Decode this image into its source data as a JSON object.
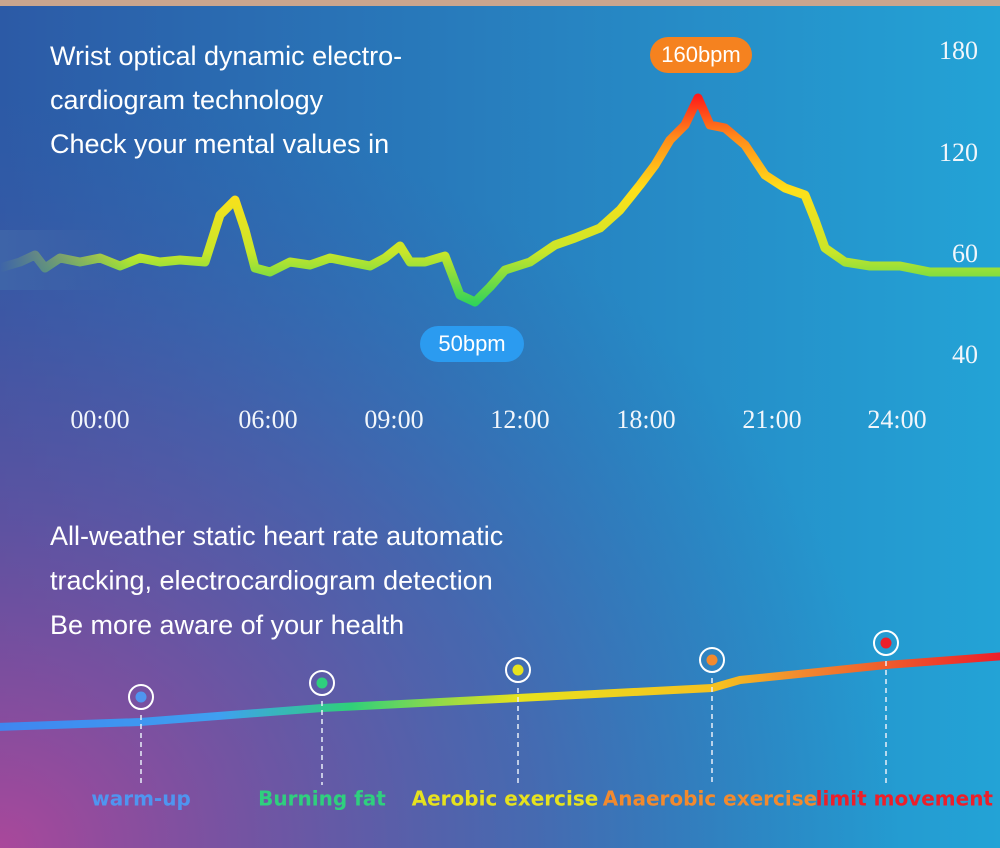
{
  "intro": {
    "lines": [
      "Wrist optical dynamic electro-",
      "cardiogram technology",
      "Check your mental values in"
    ]
  },
  "peak_label": "160bpm",
  "low_label": "50bpm",
  "y_labels": [
    "180",
    "120",
    "60",
    "40"
  ],
  "x_labels": [
    "00:00",
    "06:00",
    "09:00",
    "12:00",
    "18:00",
    "21:00",
    "24:00"
  ],
  "tracking": {
    "lines": [
      "All-weather static heart rate automatic",
      "tracking, electrocardiogram detection",
      "Be more aware of your health"
    ]
  },
  "zones": [
    {
      "label": "warm-up",
      "color": "#4f95f0"
    },
    {
      "label": "Burning fat",
      "color": "#2fcf7e"
    },
    {
      "label": "Aerobic exercise",
      "color": "#e6e21e"
    },
    {
      "label": "Anaerobic exercise",
      "color": "#f28a2e"
    },
    {
      "label": "limit movement",
      "color": "#ec1f2a"
    }
  ]
}
